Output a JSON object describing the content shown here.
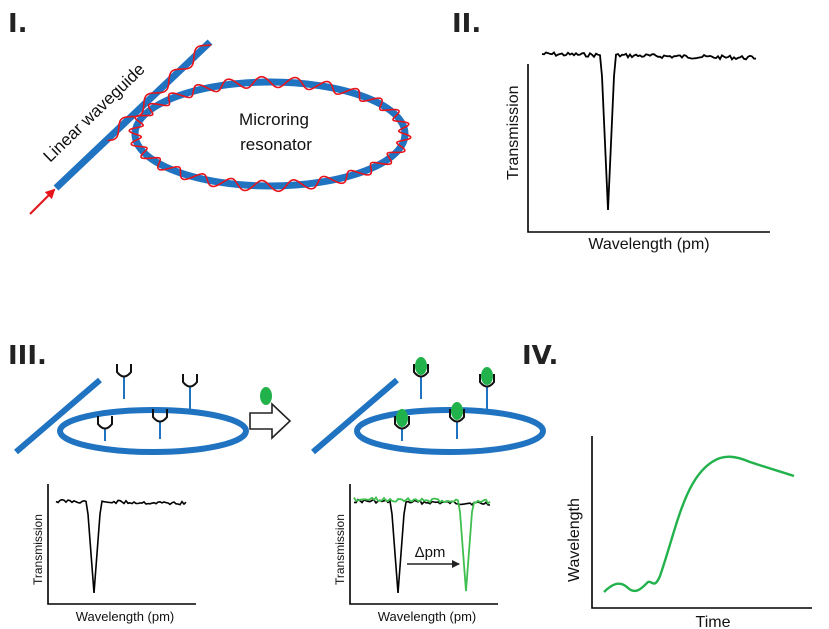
{
  "panels": {
    "p1": {
      "label": "I.",
      "waveguide_label": "Linear waveguide",
      "ring_label_line1": "Microring",
      "ring_label_line2": "resonator"
    },
    "p2": {
      "label": "II.",
      "ylabel": "Transmission",
      "xlabel": "Wavelength (pm)"
    },
    "p3": {
      "label": "III.",
      "before": {
        "ylabel": "Transmission",
        "xlabel": "Wavelength (pm)"
      },
      "after": {
        "ylabel": "Transmission",
        "xlabel": "Wavelength (pm)",
        "shift_label": "Δpm"
      }
    },
    "p4": {
      "label": "IV.",
      "ylabel": "Wavelength",
      "xlabel": "Time"
    }
  },
  "colors": {
    "waveguide": "#1f73c0",
    "light": "#e8141c",
    "analyte": "#22b24c",
    "shifted_trace": "#3fbf4f",
    "trace": "#000000"
  },
  "icons": {
    "arrow_in": "red-arrow-icon",
    "process": "hollow-right-arrow-icon",
    "antibody": "y-receptor-icon",
    "analyte": "green-oval-icon"
  }
}
